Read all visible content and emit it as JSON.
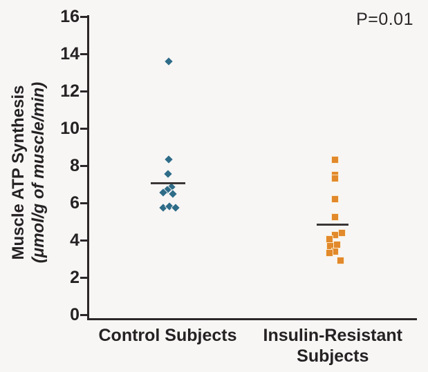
{
  "chart_data": {
    "type": "scatter",
    "title": "",
    "annotation": "P=0.01",
    "ylabel_line1": "Muscle ATP Synthesis",
    "ylabel_line2": "(μmol/g of muscle/min)",
    "ylim": [
      0,
      16
    ],
    "yticks": [
      0,
      2,
      4,
      6,
      8,
      10,
      12,
      14,
      16
    ],
    "grid": false,
    "legend": "none",
    "series": [
      {
        "name": "Control Subjects",
        "label_lines": [
          "Control Subjects"
        ],
        "marker": "diamond",
        "color": "#2e6c88",
        "mean": 7.05,
        "points": [
          {
            "v": 13.6,
            "dx": 0
          },
          {
            "v": 8.35,
            "dx": 0
          },
          {
            "v": 7.55,
            "dx": -1
          },
          {
            "v": 6.85,
            "dx": 4
          },
          {
            "v": 6.7,
            "dx": -2
          },
          {
            "v": 6.55,
            "dx": -8
          },
          {
            "v": 6.5,
            "dx": 6
          },
          {
            "v": 5.75,
            "dx": -8
          },
          {
            "v": 5.8,
            "dx": 1
          },
          {
            "v": 5.75,
            "dx": 10
          }
        ]
      },
      {
        "name": "Insulin-Resistant Subjects",
        "label_lines": [
          "Insulin-Resistant",
          "Subjects"
        ],
        "marker": "square",
        "color": "#e2892b",
        "mean": 4.85,
        "points": [
          {
            "v": 8.3,
            "dx": 0
          },
          {
            "v": 7.5,
            "dx": 0
          },
          {
            "v": 7.3,
            "dx": 0
          },
          {
            "v": 6.2,
            "dx": 0
          },
          {
            "v": 5.25,
            "dx": 0
          },
          {
            "v": 4.4,
            "dx": 10
          },
          {
            "v": 4.28,
            "dx": 0
          },
          {
            "v": 4.05,
            "dx": -8
          },
          {
            "v": 3.75,
            "dx": 3
          },
          {
            "v": 3.7,
            "dx": -7
          },
          {
            "v": 3.4,
            "dx": 0
          },
          {
            "v": 3.3,
            "dx": -8
          },
          {
            "v": 2.9,
            "dx": 8
          }
        ]
      }
    ],
    "colors": {
      "background": "#f7f6f5",
      "axis": "#2b2627",
      "text": "#262223",
      "mean_line": "#3a3637",
      "control": "#2e6c88",
      "insulin_resistant": "#e2892b"
    }
  }
}
